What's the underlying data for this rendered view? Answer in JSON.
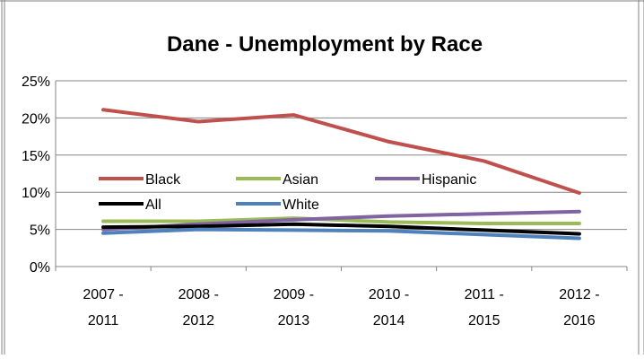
{
  "chart_data": {
    "type": "line",
    "title": "Dane - Unemployment by Race",
    "xlabel": "",
    "ylabel": "",
    "categories": [
      [
        "2007 -",
        "2011"
      ],
      [
        "2008 -",
        "2012"
      ],
      [
        "2009 -",
        "2013"
      ],
      [
        "2010 -",
        "2014"
      ],
      [
        "2011 -",
        "2015"
      ],
      [
        "2012 -",
        "2016"
      ]
    ],
    "y_ticks": [
      "0%",
      "5%",
      "10%",
      "15%",
      "20%",
      "25%"
    ],
    "ylim": [
      0,
      25
    ],
    "grid": true,
    "legend_position": "inside-left",
    "series": [
      {
        "name": "Black",
        "color": "#C0504D",
        "values": [
          21.1,
          19.5,
          20.4,
          16.8,
          14.2,
          9.9
        ]
      },
      {
        "name": "Asian",
        "color": "#9BBB59",
        "values": [
          6.1,
          6.1,
          6.5,
          6.0,
          5.8,
          5.8
        ]
      },
      {
        "name": "Hispanic",
        "color": "#8064A2",
        "values": [
          5.0,
          5.7,
          6.3,
          6.8,
          7.1,
          7.4
        ]
      },
      {
        "name": "All",
        "color": "#000000",
        "values": [
          5.3,
          5.4,
          5.7,
          5.4,
          4.9,
          4.4
        ]
      },
      {
        "name": "White",
        "color": "#4F81BD",
        "values": [
          4.5,
          5.0,
          4.9,
          4.8,
          4.3,
          3.8
        ]
      }
    ]
  }
}
